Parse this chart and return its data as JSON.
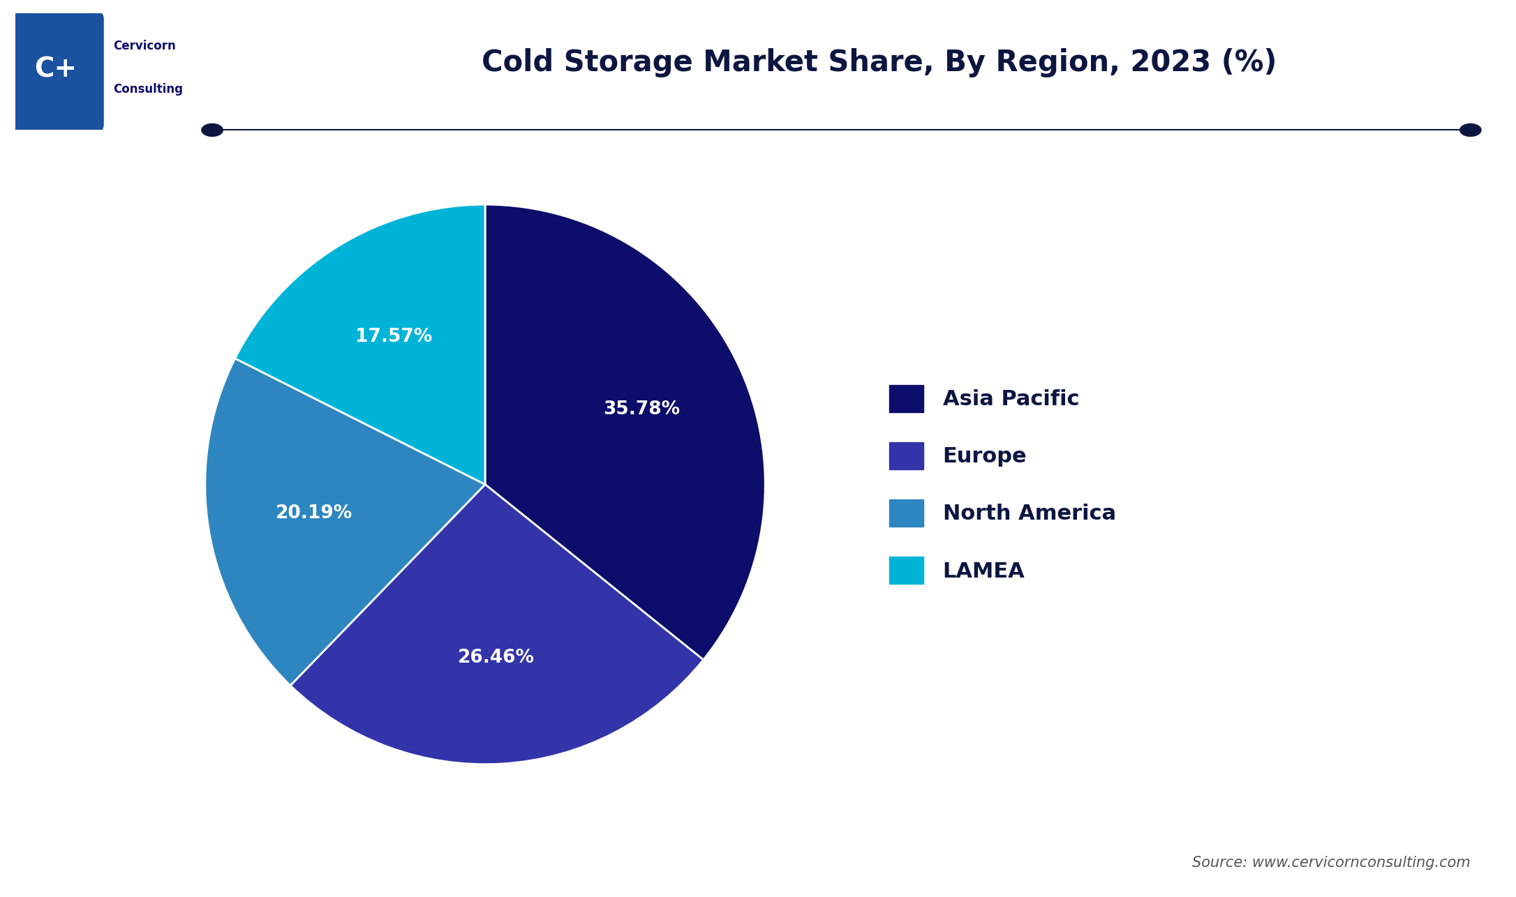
{
  "title": "Cold Storage Market Share, By Region, 2023 (%)",
  "source_text": "Source: www.cervicornconsulting.com",
  "labels": [
    "Asia Pacific",
    "Europe",
    "North America",
    "LAMEA"
  ],
  "values": [
    35.78,
    26.46,
    20.19,
    17.57
  ],
  "colors": [
    "#0d0d6b",
    "#3333aa",
    "#2e86c1",
    "#00b4d8"
  ],
  "pct_labels": [
    "35.78%",
    "26.46%",
    "20.19%",
    "17.57%"
  ],
  "wedge_edge_color": "white",
  "background_color": "#ffffff",
  "title_fontsize": 30,
  "label_fontsize": 19,
  "legend_fontsize": 22,
  "source_fontsize": 15,
  "startangle": 90,
  "logo_bg_color": "#1a52a0",
  "logo_text_color": "#ffffff",
  "brand_name_color": "#0d0d6b"
}
